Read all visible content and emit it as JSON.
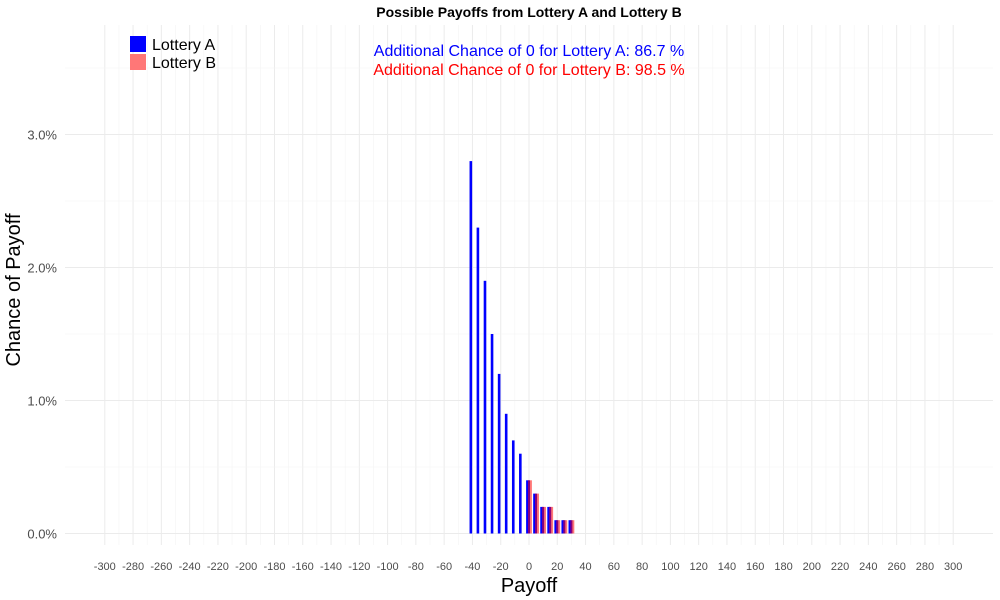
{
  "chart_data": {
    "type": "bar",
    "title": "Possible Payoffs from Lottery A and Lottery B",
    "xlabel": "Payoff",
    "ylabel": "Chance of Payoff",
    "xlim": [
      -310,
      310
    ],
    "ylim": [
      0,
      0.036
    ],
    "x_ticks": [
      -300,
      -280,
      -260,
      -240,
      -220,
      -200,
      -180,
      -160,
      -140,
      -120,
      -100,
      -80,
      -60,
      -40,
      -20,
      0,
      20,
      40,
      60,
      80,
      100,
      120,
      140,
      160,
      180,
      200,
      220,
      240,
      260,
      280,
      300
    ],
    "y_ticks": [
      {
        "value": 0.0,
        "label": "0.0%"
      },
      {
        "value": 0.01,
        "label": "1.0%"
      },
      {
        "value": 0.02,
        "label": "2.0%"
      },
      {
        "value": 0.03,
        "label": "3.0%"
      }
    ],
    "grid": true,
    "legend_position": "top-left",
    "series": [
      {
        "name": "Lottery A",
        "color": "#0000ff",
        "x": [
          -40,
          -35,
          -30,
          -25,
          -20,
          -15,
          -10,
          -5,
          0,
          5,
          10,
          15,
          20,
          25,
          30
        ],
        "values": [
          0.028,
          0.023,
          0.019,
          0.015,
          0.012,
          0.009,
          0.007,
          0.006,
          0.004,
          0.003,
          0.002,
          0.002,
          0.001,
          0.001,
          0.001
        ]
      },
      {
        "name": "Lottery B",
        "color": "#ff7777",
        "x": [
          0,
          5,
          10,
          15,
          20,
          25,
          30
        ],
        "values": [
          0.004,
          0.003,
          0.002,
          0.002,
          0.001,
          0.001,
          0.001
        ]
      }
    ],
    "annotations": [
      {
        "text": "Additional Chance of 0 for Lottery A:  86.7 %",
        "color": "#0000ff"
      },
      {
        "text": "Additional Chance of 0 for Lottery B:  98.5 %",
        "color": "#ff0000"
      }
    ]
  }
}
